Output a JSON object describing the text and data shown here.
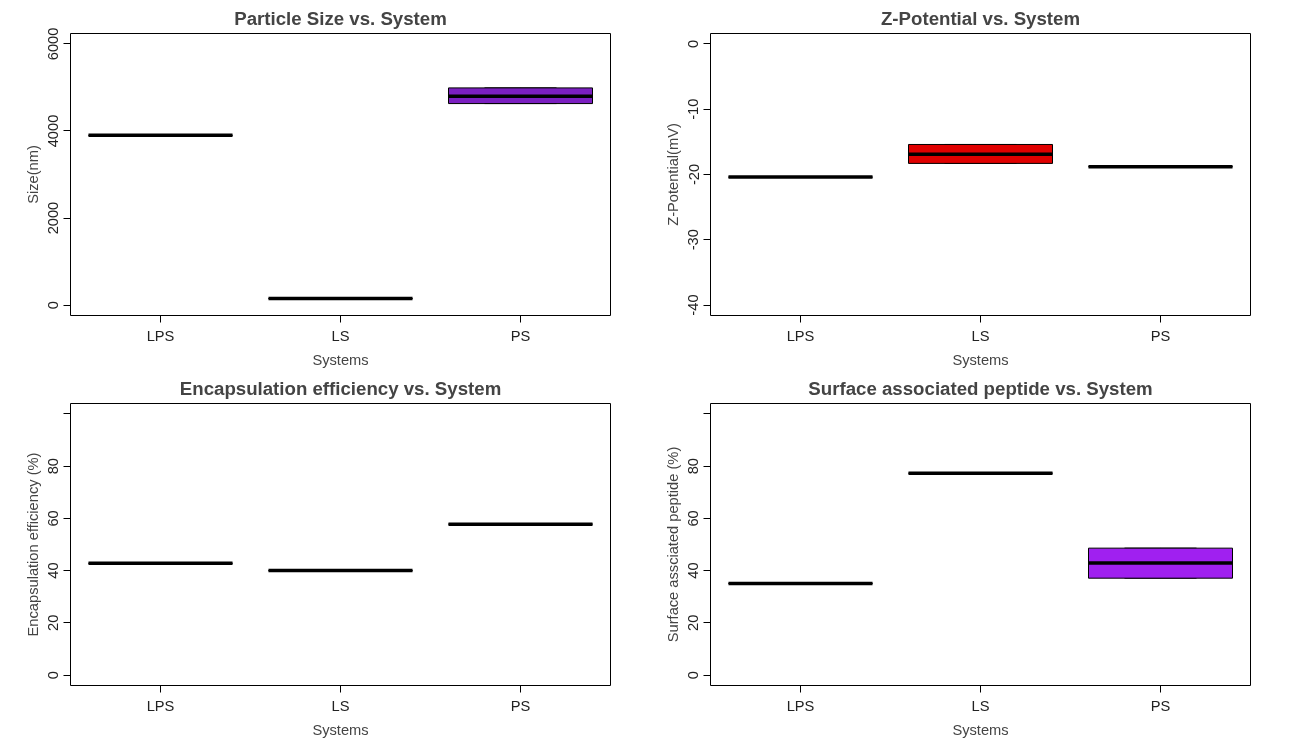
{
  "chart_data": [
    {
      "type": "box",
      "title": "Particle Size vs. System",
      "xlabel": "Systems",
      "ylabel": "Size(nm)",
      "categories": [
        "LPS",
        "LS",
        "PS"
      ],
      "boxes": [
        {
          "low": 3900,
          "q1": 3900,
          "median": 3900,
          "q3": 3900,
          "high": 3900
        },
        {
          "low": 150,
          "q1": 150,
          "median": 150,
          "q3": 150,
          "high": 150
        },
        {
          "low": 4630,
          "q1": 4630,
          "median": 4800,
          "q3": 4990,
          "high": 4990
        }
      ],
      "colors": [
        "#000000",
        "#000000",
        "#7b1fc0"
      ],
      "ylim": [
        -240,
        6240
      ],
      "yticks": [
        0,
        2000,
        4000,
        6000
      ],
      "grid": false
    },
    {
      "type": "box",
      "title": "Z-Potential vs. System",
      "xlabel": "Systems",
      "ylabel": "Z-Potential(mV)",
      "categories": [
        "LPS",
        "LS",
        "PS"
      ],
      "boxes": [
        {
          "low": -20.4,
          "q1": -20.4,
          "median": -20.4,
          "q3": -20.4,
          "high": -20.4
        },
        {
          "low": -18.3,
          "q1": -18.3,
          "median": -16.9,
          "q3": -15.4,
          "high": -15.4
        },
        {
          "low": -18.8,
          "q1": -18.8,
          "median": -18.8,
          "q3": -18.8,
          "high": -18.8
        }
      ],
      "colors": [
        "#000000",
        "#e00000",
        "#000000"
      ],
      "ylim": [
        -41.6,
        1.6
      ],
      "yticks": [
        -40,
        -30,
        -20,
        -10,
        0
      ],
      "grid": false
    },
    {
      "type": "box",
      "title": "Encapsulation efficiency vs. System",
      "xlabel": "Systems",
      "ylabel": "Encapsulation efficiency (%)",
      "categories": [
        "LPS",
        "LS",
        "PS"
      ],
      "boxes": [
        {
          "low": 42.8,
          "q1": 42.8,
          "median": 42.8,
          "q3": 42.8,
          "high": 42.8
        },
        {
          "low": 40,
          "q1": 40,
          "median": 40,
          "q3": 40,
          "high": 40
        },
        {
          "low": 57.8,
          "q1": 57.8,
          "median": 57.8,
          "q3": 57.8,
          "high": 57.8
        }
      ],
      "colors": [
        "#000000",
        "#000000",
        "#000000"
      ],
      "ylim": [
        -4,
        104
      ],
      "yticks": [
        0,
        20,
        40,
        60,
        80,
        {
          "value": 100,
          "label": null
        }
      ],
      "grid": false
    },
    {
      "type": "box",
      "title": "Surface associated peptide vs. System",
      "xlabel": "Systems",
      "ylabel": "Surface assciated peptide (%)",
      "categories": [
        "LPS",
        "LS",
        "PS"
      ],
      "boxes": [
        {
          "low": 35.1,
          "q1": 35.1,
          "median": 35.1,
          "q3": 35.1,
          "high": 35.1
        },
        {
          "low": 77.3,
          "q1": 77.3,
          "median": 77.3,
          "q3": 77.3,
          "high": 77.3
        },
        {
          "low": 37.1,
          "q1": 37.1,
          "median": 42.9,
          "q3": 48.6,
          "high": 48.6
        }
      ],
      "colors": [
        "#000000",
        "#000000",
        "#a020f0"
      ],
      "ylim": [
        -4,
        104
      ],
      "yticks": [
        0,
        20,
        40,
        60,
        80,
        {
          "value": 100,
          "label": null
        }
      ],
      "grid": false
    }
  ]
}
